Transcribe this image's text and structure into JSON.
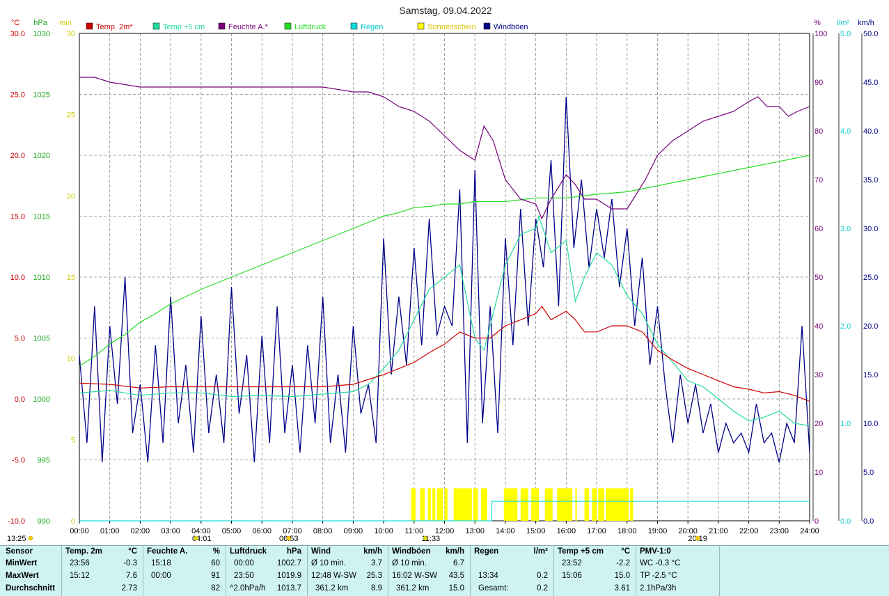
{
  "title": "Samstag, 09.04.2022",
  "colors": {
    "temp2m": "#cc0000",
    "temp5cm": "#22dd99",
    "humidity": "#770077",
    "pressure": "#22dd22",
    "rain": "#11dddd",
    "sunshine": "#ffff00",
    "gusts": "#000088",
    "grid": "#888888",
    "table_bg": "#cff3f3"
  },
  "chart_data": {
    "type": "line",
    "title": "Samstag, 09.04.2022",
    "x_unit": "hour",
    "xlim": [
      0,
      24
    ],
    "x_ticks": [
      "00:00",
      "01:00",
      "02:00",
      "03:00",
      "04:00",
      "05:00",
      "06:00",
      "07:00",
      "08:00",
      "09:00",
      "10:00",
      "11:00",
      "12:00",
      "13:00",
      "14:00",
      "15:00",
      "16:00",
      "17:00",
      "18:00",
      "19:00",
      "20:00",
      "21:00",
      "22:00",
      "23:00",
      "24:00"
    ],
    "axes": [
      {
        "id": "temp",
        "unit": "°C",
        "side": "left",
        "range": [
          -10,
          30
        ],
        "ticks": [
          "30.0",
          "25.0",
          "20.0",
          "15.0",
          "10.0",
          "5.0",
          "0.0",
          "-5.0",
          "-10.0"
        ],
        "color": "#cc0000"
      },
      {
        "id": "hpa",
        "unit": "hPa",
        "side": "left",
        "range": [
          990,
          1030
        ],
        "ticks": [
          "1030",
          "1025",
          "1020",
          "1015",
          "1010",
          "1005",
          "1000",
          "995",
          "990"
        ],
        "color": "#22aa22"
      },
      {
        "id": "min",
        "unit": "min",
        "side": "left",
        "range": [
          0,
          30
        ],
        "ticks": [
          "30",
          "25",
          "20",
          "15",
          "10",
          "5",
          "0"
        ],
        "color": "#cccc00"
      },
      {
        "id": "pct",
        "unit": "%",
        "side": "right",
        "range": [
          0,
          100
        ],
        "ticks": [
          "100",
          "90",
          "80",
          "70",
          "60",
          "50",
          "40",
          "30",
          "20",
          "10",
          "0"
        ],
        "color": "#770077"
      },
      {
        "id": "lm2",
        "unit": "l/m²",
        "side": "right",
        "range": [
          0,
          5
        ],
        "ticks": [
          "5.0",
          "4.0",
          "3.0",
          "2.0",
          "1.0",
          "0.0"
        ],
        "color": "#11cccc"
      },
      {
        "id": "kmh",
        "unit": "km/h",
        "side": "right",
        "range": [
          0,
          50
        ],
        "ticks": [
          "50.0",
          "45.0",
          "40.0",
          "35.0",
          "30.0",
          "25.0",
          "20.0",
          "15.0",
          "10.0",
          "5.0",
          "0.0"
        ],
        "color": "#000088"
      }
    ],
    "legend": [
      "Temp. 2m*",
      "Temp +5 cm",
      "Feuchte A.*",
      "Luftdruck",
      "Regen",
      "Sonnenschein",
      "Windböen"
    ],
    "series": [
      {
        "name": "Temp. 2m*",
        "axis": "temp",
        "x": [
          0,
          1,
          2,
          3,
          4,
          5,
          6,
          7,
          8,
          9,
          9.5,
          10,
          10.5,
          11,
          11.5,
          12,
          12.5,
          13,
          13.5,
          14,
          14.5,
          15,
          15.2,
          15.5,
          16,
          16.3,
          16.6,
          17,
          17.5,
          18,
          18.5,
          19,
          19.5,
          20,
          20.5,
          21,
          21.5,
          22,
          22.5,
          23,
          23.5,
          24
        ],
        "y": [
          1.3,
          1.2,
          0.9,
          1.0,
          1.0,
          1.0,
          1.0,
          1.0,
          1.0,
          1.2,
          1.6,
          2.0,
          2.5,
          3.0,
          3.8,
          4.5,
          5.5,
          5.0,
          5.0,
          6.0,
          6.5,
          7.0,
          7.6,
          6.5,
          7.2,
          6.5,
          5.5,
          5.5,
          6.0,
          6.0,
          5.5,
          4.0,
          3.2,
          2.5,
          2.0,
          1.5,
          1.0,
          0.8,
          0.5,
          0.6,
          0.3,
          -0.2
        ]
      },
      {
        "name": "Temp +5 cm",
        "axis": "temp",
        "x": [
          0,
          1,
          2,
          3,
          4,
          5,
          6,
          7,
          8,
          9,
          9.5,
          10,
          10.5,
          11,
          11.5,
          12,
          12.5,
          13,
          13.3,
          13.6,
          14,
          14.5,
          15,
          15.1,
          15.5,
          16,
          16.3,
          16.6,
          17,
          17.5,
          18,
          18.5,
          19,
          19.5,
          20,
          20.5,
          21,
          21.5,
          22,
          22.5,
          23,
          23.5,
          24
        ],
        "y": [
          0.5,
          0.7,
          0.3,
          0.5,
          0.5,
          0.2,
          0.3,
          0.2,
          0.4,
          0.6,
          1.2,
          2.5,
          4.0,
          6.5,
          9.0,
          10.0,
          11.0,
          5.0,
          4.0,
          7.0,
          11.0,
          13.5,
          14.0,
          15.0,
          12.0,
          13.0,
          8.0,
          10.0,
          12.0,
          11.0,
          8.5,
          7.0,
          4.5,
          3.0,
          1.5,
          1.0,
          0.0,
          -1.0,
          -1.8,
          -1.5,
          -1.0,
          -2.0,
          -2.2
        ]
      },
      {
        "name": "Feuchte A.*",
        "axis": "pct",
        "x": [
          0,
          0.5,
          1,
          2,
          3,
          4,
          5,
          6,
          7,
          8,
          9,
          9.5,
          10,
          10.5,
          11,
          11.5,
          12,
          12.5,
          13,
          13.3,
          13.6,
          14,
          14.5,
          15,
          15.2,
          15.5,
          16,
          16.3,
          16.6,
          17,
          17.5,
          18,
          18.3,
          18.6,
          19,
          19.5,
          20,
          20.5,
          21,
          21.5,
          22,
          22.3,
          22.6,
          23,
          23.3,
          23.6,
          24
        ],
        "y": [
          91,
          91,
          90,
          89,
          89,
          89,
          89,
          89,
          89,
          89,
          88,
          88,
          87,
          85,
          84,
          82,
          79,
          76,
          74,
          81,
          78,
          70,
          66,
          65,
          62,
          66,
          71,
          69,
          66,
          66,
          64,
          64,
          67,
          70,
          75,
          78,
          80,
          82,
          83,
          84,
          86,
          87,
          85,
          85,
          83,
          84,
          85
        ]
      },
      {
        "name": "Luftdruck",
        "axis": "hpa",
        "x": [
          0,
          0.5,
          1,
          1.5,
          2,
          2.5,
          3,
          3.5,
          4,
          5,
          6,
          7,
          8,
          9,
          10,
          10.5,
          11,
          11.5,
          12,
          12.5,
          13,
          14,
          15,
          16,
          17,
          18,
          19,
          20,
          21,
          22,
          23,
          24
        ],
        "y": [
          1002.7,
          1003.5,
          1004.5,
          1005.3,
          1006.3,
          1007.0,
          1007.8,
          1008.4,
          1009.0,
          1010.0,
          1011.0,
          1012.0,
          1013.0,
          1014.0,
          1015.0,
          1015.3,
          1015.7,
          1015.8,
          1016.0,
          1016.0,
          1016.2,
          1016.2,
          1016.5,
          1016.5,
          1016.8,
          1017.0,
          1017.5,
          1018.0,
          1018.5,
          1019.0,
          1019.5,
          1020.0
        ]
      },
      {
        "name": "Windböen",
        "axis": "kmh",
        "x": [
          0,
          0.25,
          0.5,
          0.75,
          1,
          1.25,
          1.5,
          1.75,
          2,
          2.25,
          2.5,
          2.75,
          3,
          3.25,
          3.5,
          3.75,
          4,
          4.25,
          4.5,
          4.75,
          5,
          5.25,
          5.5,
          5.75,
          6,
          6.25,
          6.5,
          6.75,
          7,
          7.25,
          7.5,
          7.75,
          8,
          8.25,
          8.5,
          8.75,
          9,
          9.25,
          9.5,
          9.75,
          10,
          10.25,
          10.5,
          10.75,
          11,
          11.25,
          11.5,
          11.75,
          12,
          12.25,
          12.5,
          12.75,
          13,
          13.25,
          13.5,
          13.75,
          14,
          14.25,
          14.5,
          14.75,
          15,
          15.25,
          15.5,
          15.75,
          16,
          16.25,
          16.5,
          16.75,
          17,
          17.25,
          17.5,
          17.75,
          18,
          18.25,
          18.5,
          18.75,
          19,
          19.25,
          19.5,
          19.75,
          20,
          20.25,
          20.5,
          20.75,
          21,
          21.25,
          21.5,
          21.75,
          22,
          22.25,
          22.5,
          22.75,
          23,
          23.25,
          23.5,
          23.75,
          24
        ],
        "y": [
          17,
          8,
          22,
          6,
          20,
          12,
          25,
          9,
          14,
          6,
          18,
          8,
          23,
          10,
          16,
          7,
          21,
          9,
          15,
          8,
          24,
          11,
          17,
          6,
          19,
          8,
          22,
          9,
          16,
          7,
          18,
          10,
          23,
          8,
          15,
          7,
          20,
          11,
          14,
          8,
          29,
          15,
          23,
          16,
          28,
          18,
          31,
          19,
          22,
          20,
          34,
          8,
          36,
          10,
          22,
          9,
          29,
          18,
          32,
          20,
          31,
          26,
          37,
          22,
          43.5,
          28,
          35,
          26,
          32,
          27,
          33,
          24,
          30,
          20,
          27,
          16,
          22,
          14,
          8,
          15,
          10,
          14,
          9,
          12,
          7,
          10,
          8,
          9,
          7,
          12,
          8,
          9,
          6,
          10,
          8,
          20,
          7
        ]
      },
      {
        "name": "Regen",
        "axis": "lm2",
        "x": [
          0,
          13.55,
          13.56,
          24
        ],
        "y": [
          0,
          0,
          0.2,
          0.2
        ]
      }
    ],
    "sunshine_bars": {
      "axis": "min",
      "spans": [
        [
          10.9,
          11.05
        ],
        [
          11.2,
          11.35
        ],
        [
          11.45,
          11.55
        ],
        [
          11.6,
          11.7
        ],
        [
          11.75,
          11.95
        ],
        [
          12.0,
          12.1
        ],
        [
          12.3,
          12.9
        ],
        [
          12.95,
          13.1
        ],
        [
          13.2,
          13.4
        ],
        [
          13.95,
          14.4
        ],
        [
          14.5,
          14.75
        ],
        [
          14.85,
          15.1
        ],
        [
          15.3,
          15.55
        ],
        [
          15.7,
          16.2
        ],
        [
          16.3,
          16.35
        ],
        [
          16.6,
          16.75
        ],
        [
          16.85,
          17.0
        ],
        [
          17.05,
          17.25
        ],
        [
          17.3,
          18.05
        ],
        [
          18.1,
          18.2
        ]
      ],
      "value": 2.0
    },
    "markers": [
      {
        "label": "13:25",
        "x": 0.0,
        "symbol": "sun"
      },
      {
        "label": "04:01",
        "x": 4.02,
        "symbol": "moon"
      },
      {
        "label": "06:53",
        "x": 6.88,
        "symbol": "sun"
      },
      {
        "label": "11:33",
        "x": 11.55,
        "symbol": "moon"
      },
      {
        "label": "20:19",
        "x": 20.32,
        "symbol": "sun"
      }
    ]
  },
  "table": {
    "row_labels": {
      "sensor": "Sensor",
      "min": "MinWert",
      "max": "MaxWert",
      "avg": "Durchschnitt"
    },
    "columns": [
      {
        "title": "Temp. 2m",
        "unit": "°C",
        "min_time": "23:56",
        "min_val": "-0.3",
        "max_time": "15:12",
        "max_val": "7.6",
        "avg_time": "",
        "avg_val": "2.73"
      },
      {
        "title": "Feuchte A.",
        "unit": "%",
        "min_time": "15:18",
        "min_val": "60",
        "max_time": "00:00",
        "max_val": "91",
        "avg_time": "",
        "avg_val": "82"
      },
      {
        "title": "Luftdruck",
        "unit": "hPa",
        "min_time": "00:00",
        "min_val": "1002.7",
        "max_time": "23:50",
        "max_val": "1019.9",
        "avg_time": "^2.0hPa/h",
        "avg_val": "1013.7"
      },
      {
        "title": "Wind",
        "unit": "km/h",
        "min_time": "Ø 10 min.",
        "min_val": "3.7",
        "max_time": "12:48  W-SW",
        "max_val": "25.3",
        "avg_time": "361.2 km",
        "avg_val": "8.9"
      },
      {
        "title": "Windböen",
        "unit": "km/h",
        "min_time": "Ø 10 min.",
        "min_val": "6.7",
        "max_time": "16:02   W-SW",
        "max_val": "43.5",
        "avg_time": "361.2 km",
        "avg_val": "15.0"
      },
      {
        "title": "Regen",
        "unit": "l/m²",
        "min_time": "",
        "min_val": "",
        "max_time": "13:34",
        "max_val": "0.2",
        "avg_time": "Gesamt:",
        "avg_val": "0.2"
      },
      {
        "title": "Temp +5 cm",
        "unit": "°C",
        "min_time": "23:52",
        "min_val": "-2.2",
        "max_time": "15:06",
        "max_val": "15.0",
        "avg_time": "",
        "avg_val": "3.61"
      },
      {
        "title": "PMV-1:0",
        "unit": "",
        "min_time": "WC -0.3 °C",
        "min_val": "",
        "max_time": "TP -2.5 °C",
        "max_val": "",
        "avg_time": "2.1hPa/3h",
        "avg_val": ""
      }
    ]
  }
}
